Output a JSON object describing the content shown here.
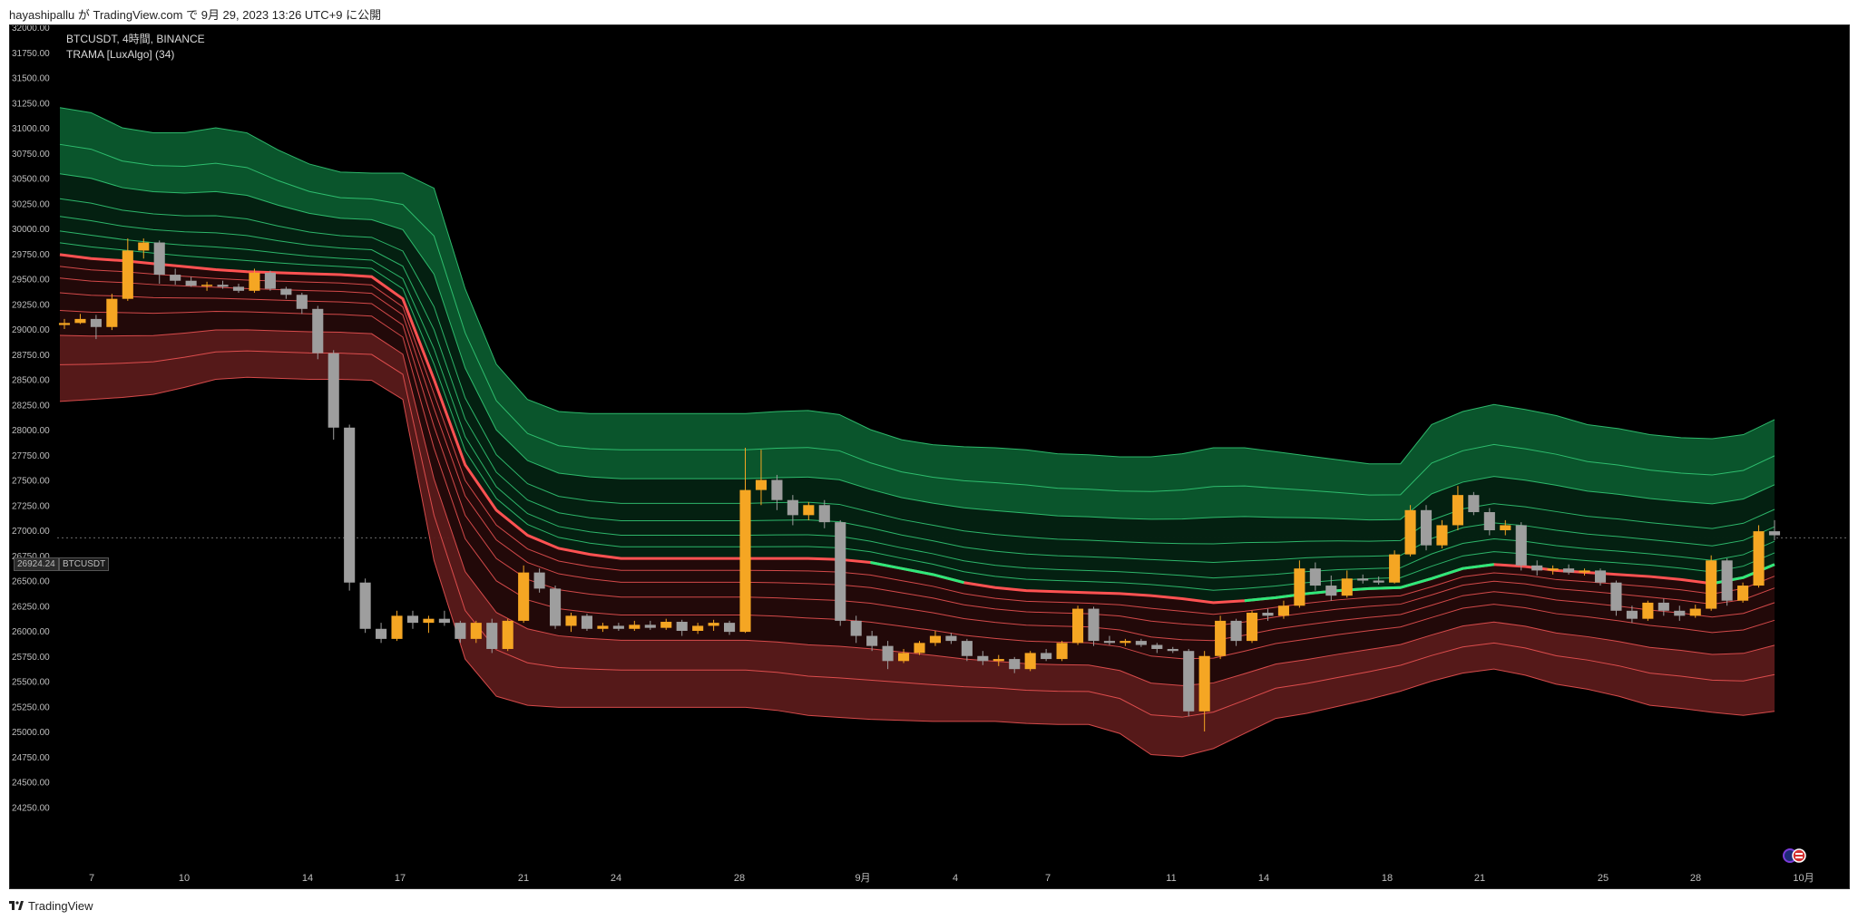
{
  "header": {
    "text": "hayashipallu が TradingView.com で 9月 29, 2023 13:26 UTC+9 に公開"
  },
  "footer": {
    "brand": "TradingView"
  },
  "legend": {
    "line1": "BTCUSDT, 4時間, BINANCE",
    "line2": "TRAMA [LuxAlgo] (34)"
  },
  "price_tag": "26924.24",
  "symbol_tag": "BTCUSDT",
  "icons": [
    "tradingview-logo-icon",
    "flag-icon"
  ],
  "colors": {
    "background": "#000000",
    "bull_candle": "#f5a623",
    "bear_candle": "#9e9e9e",
    "trama_bear": "#ff5252",
    "trama_bull": "#2ee87a",
    "band_green": "#0b5a2e",
    "band_red": "#5a1a1a"
  },
  "chart_data": {
    "type": "candlestick",
    "symbol": "BTCUSDT",
    "interval": "4時間",
    "exchange": "BINANCE",
    "indicator": "TRAMA [LuxAlgo] (34)",
    "last_price": 26924.24,
    "ylim": [
      24000,
      32000
    ],
    "y_ticks": [
      24250,
      24500,
      24750,
      25000,
      25250,
      25500,
      25750,
      26000,
      26250,
      26500,
      26750,
      27000,
      27250,
      27500,
      27750,
      28000,
      28250,
      28500,
      28750,
      29000,
      29250,
      29500,
      29750,
      30000,
      30250,
      30500,
      30750,
      31000,
      31250,
      31500,
      31750,
      32000
    ],
    "x_ticks": [
      "7",
      "10",
      "14",
      "17",
      "21",
      "24",
      "28",
      "9月",
      "4",
      "7",
      "11",
      "14",
      "18",
      "21",
      "25",
      "28",
      "10月"
    ],
    "x_tick_index": [
      0,
      3,
      7,
      10,
      14,
      17,
      21,
      25,
      28,
      31,
      35,
      38,
      42,
      45,
      49,
      52,
      55.5
    ],
    "trama_center": [
      29740,
      29700,
      29680,
      29650,
      29620,
      29590,
      29570,
      29560,
      29550,
      29540,
      29520,
      29300,
      28500,
      27650,
      27200,
      26950,
      26820,
      26760,
      26720,
      26720,
      26720,
      26720,
      26720,
      26720,
      26720,
      26710,
      26680,
      26620,
      26560,
      26480,
      26430,
      26400,
      26390,
      26380,
      26370,
      26350,
      26320,
      26280,
      26300,
      26330,
      26370,
      26400,
      26420,
      26430,
      26520,
      26620,
      26660,
      26640,
      26600,
      26580,
      26560,
      26540,
      26510,
      26470,
      26530,
      26660
    ],
    "band_upper": [
      31200,
      31150,
      31000,
      30950,
      30950,
      31000,
      30950,
      30780,
      30640,
      30560,
      30550,
      30550,
      30400,
      29400,
      28650,
      28300,
      28180,
      28160,
      28160,
      28160,
      28160,
      28160,
      28160,
      28180,
      28190,
      28150,
      28000,
      27900,
      27850,
      27830,
      27820,
      27800,
      27760,
      27750,
      27730,
      27730,
      27760,
      27820,
      27820,
      27780,
      27740,
      27700,
      27660,
      27660,
      28050,
      28180,
      28250,
      28200,
      28140,
      28050,
      28010,
      27950,
      27920,
      27910,
      27950,
      28100
    ],
    "band_lower": [
      28280,
      28300,
      28320,
      28350,
      28420,
      28500,
      28520,
      28510,
      28500,
      28500,
      28490,
      28300,
      26700,
      25720,
      25350,
      25260,
      25240,
      25240,
      25240,
      25240,
      25240,
      25240,
      25240,
      25210,
      25160,
      25140,
      25120,
      25110,
      25100,
      25100,
      25100,
      25080,
      25070,
      25070,
      24980,
      24770,
      24750,
      24830,
      24980,
      25130,
      25180,
      25250,
      25320,
      25400,
      25500,
      25580,
      25620,
      25560,
      25470,
      25420,
      25350,
      25260,
      25230,
      25190,
      25160,
      25200
    ],
    "candles": [
      {
        "o": 29040,
        "h": 29100,
        "l": 29000,
        "c": 29060
      },
      {
        "o": 29060,
        "h": 29150,
        "l": 29050,
        "c": 29100
      },
      {
        "o": 29100,
        "h": 29140,
        "l": 28900,
        "c": 29020
      },
      {
        "o": 29020,
        "h": 29350,
        "l": 28990,
        "c": 29300
      },
      {
        "o": 29300,
        "h": 29900,
        "l": 29280,
        "c": 29780
      },
      {
        "o": 29780,
        "h": 29900,
        "l": 29700,
        "c": 29860
      },
      {
        "o": 29860,
        "h": 29880,
        "l": 29450,
        "c": 29540
      },
      {
        "o": 29540,
        "h": 29600,
        "l": 29440,
        "c": 29480
      },
      {
        "o": 29480,
        "h": 29520,
        "l": 29420,
        "c": 29430
      },
      {
        "o": 29430,
        "h": 29470,
        "l": 29380,
        "c": 29440
      },
      {
        "o": 29440,
        "h": 29480,
        "l": 29400,
        "c": 29420
      },
      {
        "o": 29420,
        "h": 29450,
        "l": 29360,
        "c": 29380
      },
      {
        "o": 29380,
        "h": 29600,
        "l": 29360,
        "c": 29560
      },
      {
        "o": 29560,
        "h": 29580,
        "l": 29380,
        "c": 29400
      },
      {
        "o": 29400,
        "h": 29420,
        "l": 29300,
        "c": 29340
      },
      {
        "o": 29340,
        "h": 29360,
        "l": 29150,
        "c": 29200
      },
      {
        "o": 29200,
        "h": 29230,
        "l": 28700,
        "c": 28760
      },
      {
        "o": 28760,
        "h": 28790,
        "l": 27900,
        "c": 28020
      },
      {
        "o": 28020,
        "h": 28050,
        "l": 26400,
        "c": 26480
      },
      {
        "o": 26480,
        "h": 26520,
        "l": 25980,
        "c": 26020
      },
      {
        "o": 26020,
        "h": 26080,
        "l": 25880,
        "c": 25920
      },
      {
        "o": 25920,
        "h": 26200,
        "l": 25900,
        "c": 26150
      },
      {
        "o": 26150,
        "h": 26200,
        "l": 26020,
        "c": 26080
      },
      {
        "o": 26080,
        "h": 26150,
        "l": 25980,
        "c": 26120
      },
      {
        "o": 26120,
        "h": 26200,
        "l": 26050,
        "c": 26080
      },
      {
        "o": 26080,
        "h": 26100,
        "l": 25880,
        "c": 25920
      },
      {
        "o": 25920,
        "h": 26100,
        "l": 25880,
        "c": 26080
      },
      {
        "o": 26080,
        "h": 26120,
        "l": 25780,
        "c": 25820
      },
      {
        "o": 25820,
        "h": 26120,
        "l": 25800,
        "c": 26100
      },
      {
        "o": 26100,
        "h": 26650,
        "l": 26080,
        "c": 26580
      },
      {
        "o": 26580,
        "h": 26620,
        "l": 26380,
        "c": 26420
      },
      {
        "o": 26420,
        "h": 26450,
        "l": 26020,
        "c": 26050
      },
      {
        "o": 26050,
        "h": 26180,
        "l": 25990,
        "c": 26150
      },
      {
        "o": 26150,
        "h": 26170,
        "l": 26000,
        "c": 26020
      },
      {
        "o": 26020,
        "h": 26080,
        "l": 25990,
        "c": 26050
      },
      {
        "o": 26050,
        "h": 26080,
        "l": 26000,
        "c": 26020
      },
      {
        "o": 26020,
        "h": 26100,
        "l": 26000,
        "c": 26060
      },
      {
        "o": 26060,
        "h": 26100,
        "l": 26010,
        "c": 26030
      },
      {
        "o": 26030,
        "h": 26120,
        "l": 26010,
        "c": 26090
      },
      {
        "o": 26090,
        "h": 26110,
        "l": 25950,
        "c": 26000
      },
      {
        "o": 26000,
        "h": 26080,
        "l": 25970,
        "c": 26050
      },
      {
        "o": 26050,
        "h": 26110,
        "l": 26000,
        "c": 26080
      },
      {
        "o": 26080,
        "h": 26100,
        "l": 25960,
        "c": 25990
      },
      {
        "o": 25990,
        "h": 27820,
        "l": 25980,
        "c": 27400
      },
      {
        "o": 27400,
        "h": 27800,
        "l": 27250,
        "c": 27500
      },
      {
        "o": 27500,
        "h": 27550,
        "l": 27200,
        "c": 27300
      },
      {
        "o": 27300,
        "h": 27350,
        "l": 27050,
        "c": 27150
      },
      {
        "o": 27150,
        "h": 27280,
        "l": 27100,
        "c": 27250
      },
      {
        "o": 27250,
        "h": 27300,
        "l": 27020,
        "c": 27080
      },
      {
        "o": 27080,
        "h": 27100,
        "l": 26050,
        "c": 26100
      },
      {
        "o": 26100,
        "h": 26150,
        "l": 25880,
        "c": 25950
      },
      {
        "o": 25950,
        "h": 26000,
        "l": 25800,
        "c": 25850
      },
      {
        "o": 25850,
        "h": 25900,
        "l": 25620,
        "c": 25700
      },
      {
        "o": 25700,
        "h": 25820,
        "l": 25680,
        "c": 25780
      },
      {
        "o": 25780,
        "h": 25900,
        "l": 25760,
        "c": 25880
      },
      {
        "o": 25880,
        "h": 26000,
        "l": 25850,
        "c": 25950
      },
      {
        "o": 25950,
        "h": 25980,
        "l": 25870,
        "c": 25900
      },
      {
        "o": 25900,
        "h": 25920,
        "l": 25700,
        "c": 25750
      },
      {
        "o": 25750,
        "h": 25800,
        "l": 25660,
        "c": 25700
      },
      {
        "o": 25700,
        "h": 25760,
        "l": 25650,
        "c": 25720
      },
      {
        "o": 25720,
        "h": 25740,
        "l": 25580,
        "c": 25620
      },
      {
        "o": 25620,
        "h": 25800,
        "l": 25600,
        "c": 25780
      },
      {
        "o": 25780,
        "h": 25820,
        "l": 25700,
        "c": 25720
      },
      {
        "o": 25720,
        "h": 25900,
        "l": 25700,
        "c": 25880
      },
      {
        "o": 25880,
        "h": 26250,
        "l": 25860,
        "c": 26220
      },
      {
        "o": 26220,
        "h": 26240,
        "l": 25850,
        "c": 25900
      },
      {
        "o": 25900,
        "h": 25950,
        "l": 25860,
        "c": 25880
      },
      {
        "o": 25880,
        "h": 25920,
        "l": 25850,
        "c": 25900
      },
      {
        "o": 25900,
        "h": 25920,
        "l": 25840,
        "c": 25860
      },
      {
        "o": 25860,
        "h": 25880,
        "l": 25780,
        "c": 25820
      },
      {
        "o": 25820,
        "h": 25840,
        "l": 25780,
        "c": 25800
      },
      {
        "o": 25800,
        "h": 25820,
        "l": 25150,
        "c": 25200
      },
      {
        "o": 25200,
        "h": 25800,
        "l": 25000,
        "c": 25750
      },
      {
        "o": 25750,
        "h": 26150,
        "l": 25720,
        "c": 26100
      },
      {
        "o": 26100,
        "h": 26120,
        "l": 25850,
        "c": 25900
      },
      {
        "o": 25900,
        "h": 26200,
        "l": 25880,
        "c": 26180
      },
      {
        "o": 26180,
        "h": 26220,
        "l": 26100,
        "c": 26150
      },
      {
        "o": 26150,
        "h": 26300,
        "l": 26120,
        "c": 26250
      },
      {
        "o": 26250,
        "h": 26700,
        "l": 26230,
        "c": 26620
      },
      {
        "o": 26620,
        "h": 26680,
        "l": 26400,
        "c": 26450
      },
      {
        "o": 26450,
        "h": 26550,
        "l": 26300,
        "c": 26350
      },
      {
        "o": 26350,
        "h": 26600,
        "l": 26330,
        "c": 26520
      },
      {
        "o": 26520,
        "h": 26560,
        "l": 26470,
        "c": 26500
      },
      {
        "o": 26500,
        "h": 26540,
        "l": 26460,
        "c": 26480
      },
      {
        "o": 26480,
        "h": 26800,
        "l": 26470,
        "c": 26760
      },
      {
        "o": 26760,
        "h": 27250,
        "l": 26740,
        "c": 27200
      },
      {
        "o": 27200,
        "h": 27250,
        "l": 26800,
        "c": 26850
      },
      {
        "o": 26850,
        "h": 27100,
        "l": 26820,
        "c": 27050
      },
      {
        "o": 27050,
        "h": 27440,
        "l": 27000,
        "c": 27350
      },
      {
        "o": 27350,
        "h": 27380,
        "l": 27150,
        "c": 27180
      },
      {
        "o": 27180,
        "h": 27220,
        "l": 26950,
        "c": 27000
      },
      {
        "o": 27000,
        "h": 27100,
        "l": 26950,
        "c": 27050
      },
      {
        "o": 27050,
        "h": 27080,
        "l": 26600,
        "c": 26650
      },
      {
        "o": 26650,
        "h": 26700,
        "l": 26550,
        "c": 26600
      },
      {
        "o": 26600,
        "h": 26650,
        "l": 26560,
        "c": 26620
      },
      {
        "o": 26620,
        "h": 26660,
        "l": 26560,
        "c": 26580
      },
      {
        "o": 26580,
        "h": 26620,
        "l": 26550,
        "c": 26600
      },
      {
        "o": 26600,
        "h": 26620,
        "l": 26450,
        "c": 26480
      },
      {
        "o": 26480,
        "h": 26500,
        "l": 26150,
        "c": 26200
      },
      {
        "o": 26200,
        "h": 26250,
        "l": 26080,
        "c": 26120
      },
      {
        "o": 26120,
        "h": 26300,
        "l": 26100,
        "c": 26280
      },
      {
        "o": 26280,
        "h": 26320,
        "l": 26150,
        "c": 26200
      },
      {
        "o": 26200,
        "h": 26250,
        "l": 26100,
        "c": 26150
      },
      {
        "o": 26150,
        "h": 26260,
        "l": 26130,
        "c": 26220
      },
      {
        "o": 26220,
        "h": 26750,
        "l": 26200,
        "c": 26700
      },
      {
        "o": 26700,
        "h": 26720,
        "l": 26250,
        "c": 26300
      },
      {
        "o": 26300,
        "h": 26480,
        "l": 26280,
        "c": 26450
      },
      {
        "o": 26450,
        "h": 27050,
        "l": 26430,
        "c": 26990
      },
      {
        "o": 26990,
        "h": 27100,
        "l": 26900,
        "c": 26950
      }
    ]
  }
}
